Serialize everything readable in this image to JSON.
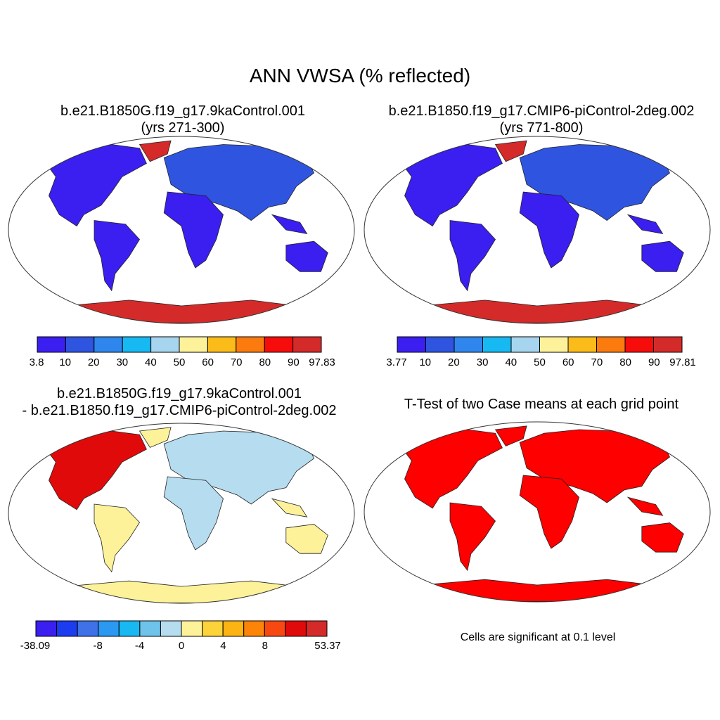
{
  "title": "ANN VWSA (% reflected)",
  "panels": [
    {
      "id": "case1",
      "title_lines": [
        "b.e21.B1850G.f19_g17.9kaControl.001",
        "(yrs 271-300)"
      ],
      "colorbar": {
        "labels": [
          "3.8",
          "10",
          "20",
          "30",
          "40",
          "50",
          "60",
          "70",
          "80",
          "90",
          "97.83"
        ],
        "colors": [
          "#3b1ef0",
          "#2f55e0",
          "#2f87ee",
          "#17b9f2",
          "#a7d4ee",
          "#fdf29a",
          "#fbbb18",
          "#fb7b0e",
          "#f60c0b",
          "#d42a2a"
        ]
      }
    },
    {
      "id": "case2",
      "title_lines": [
        "b.e21.B1850.f19_g17.CMIP6-piControl-2deg.002",
        "(yrs 771-800)"
      ],
      "colorbar": {
        "labels": [
          "3.77",
          "10",
          "20",
          "30",
          "40",
          "50",
          "60",
          "70",
          "80",
          "90",
          "97.81"
        ],
        "colors": [
          "#3b1ef0",
          "#2f55e0",
          "#2f87ee",
          "#17b9f2",
          "#a7d4ee",
          "#fdf29a",
          "#fbbb18",
          "#fb7b0e",
          "#f60c0b",
          "#d42a2a"
        ]
      }
    },
    {
      "id": "difference",
      "title_lines": [
        "b.e21.B1850G.f19_g17.9kaControl.001",
        "- b.e21.B1850.f19_g17.CMIP6-piControl-2deg.002"
      ],
      "colorbar": {
        "labels": [
          "-38.09",
          "-8",
          "-4",
          "0",
          "4",
          "8",
          "53.37"
        ],
        "colors": [
          "#3b1ef0",
          "#1c3cf0",
          "#3f71e8",
          "#2b98f2",
          "#18b9f2",
          "#6ec3ea",
          "#b6dcf0",
          "#fdf29a",
          "#fdd33a",
          "#fbb411",
          "#fb8409",
          "#f84812",
          "#e10a0a",
          "#d42a2a"
        ]
      }
    },
    {
      "id": "ttest",
      "title_lines": [
        "T-Test of two Case means at each grid point"
      ],
      "note": "Cells are significant at 0.1 level",
      "sig_color": "#ff0000"
    }
  ]
}
